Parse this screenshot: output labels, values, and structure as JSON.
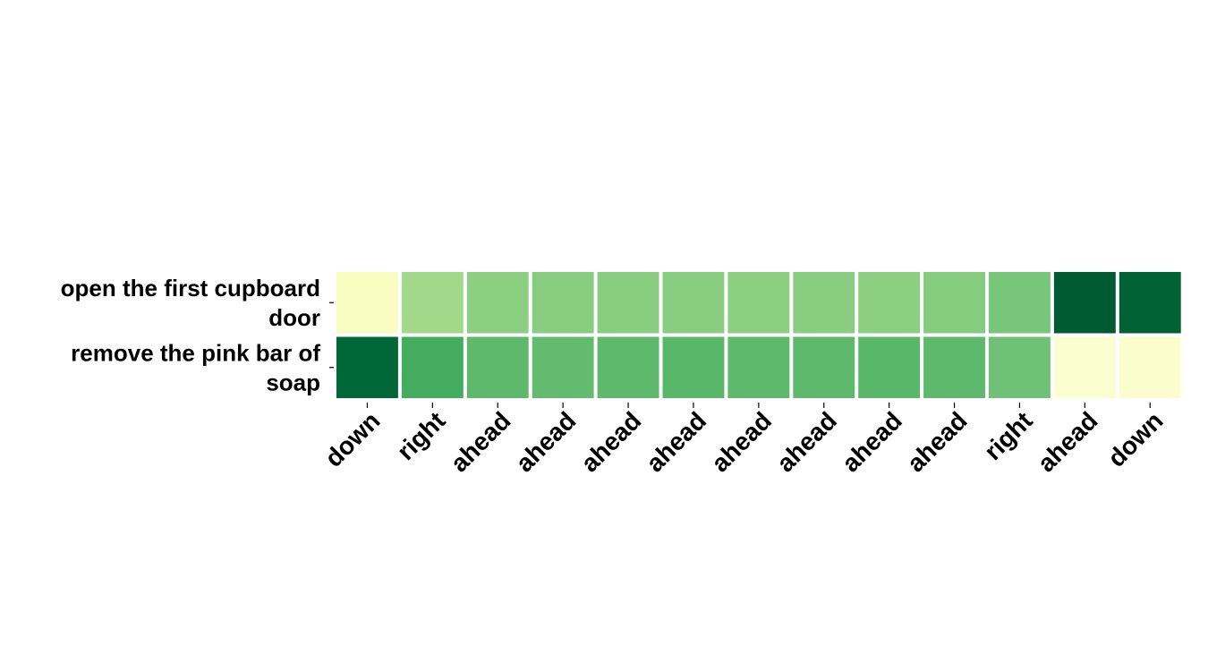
{
  "chart_data": {
    "type": "heatmap",
    "title": "",
    "xlabel": "",
    "ylabel": "",
    "x_categories": [
      "down",
      "right",
      "ahead",
      "ahead",
      "ahead",
      "ahead",
      "ahead",
      "ahead",
      "ahead",
      "ahead",
      "right",
      "ahead",
      "down"
    ],
    "y_categories": [
      [
        "open the first cupboard",
        "door"
      ],
      [
        "remove the pink bar of",
        "soap"
      ]
    ],
    "values": [
      [
        0.1,
        0.4,
        0.45,
        0.46,
        0.46,
        0.46,
        0.45,
        0.46,
        0.45,
        0.47,
        0.5,
        0.92,
        0.9
      ],
      [
        0.88,
        0.62,
        0.56,
        0.55,
        0.56,
        0.57,
        0.56,
        0.56,
        0.57,
        0.56,
        0.52,
        0.06,
        0.07
      ]
    ],
    "value_range": [
      0,
      1
    ],
    "colormap": "YlGn",
    "colorbar": false,
    "grid": false,
    "legend": "none"
  }
}
